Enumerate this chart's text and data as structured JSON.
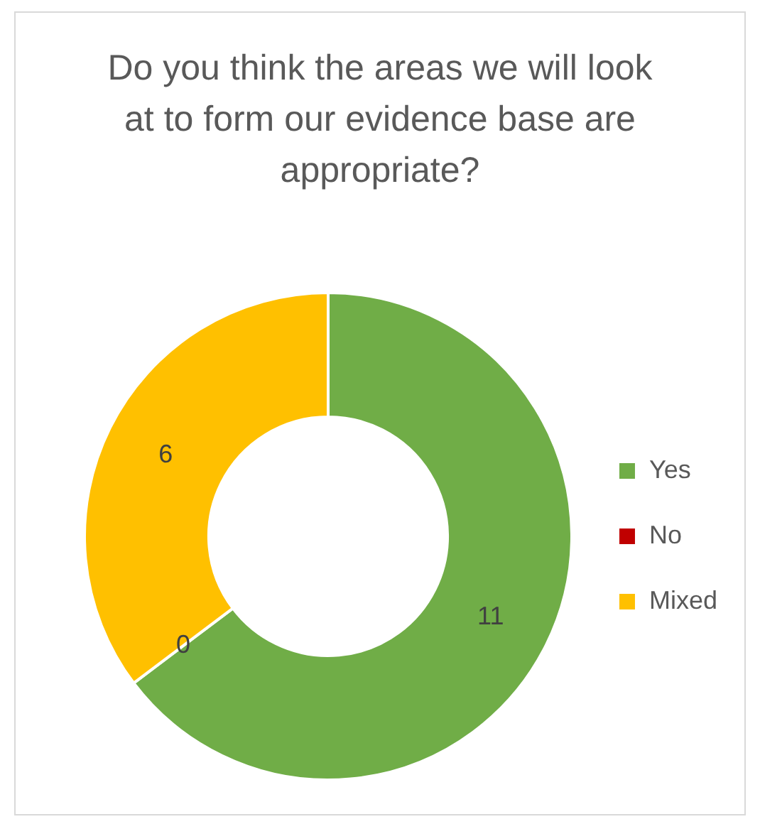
{
  "chart_data": {
    "type": "donut",
    "title": "Do you think the areas we will look at to form our evidence base are appropriate?",
    "categories": [
      "Yes",
      "No",
      "Mixed"
    ],
    "values": [
      11,
      0,
      6
    ],
    "value_labels": [
      "11",
      "0",
      "6"
    ],
    "colors": [
      "#70ad47",
      "#c00000",
      "#ffc000"
    ],
    "legend": "right"
  }
}
